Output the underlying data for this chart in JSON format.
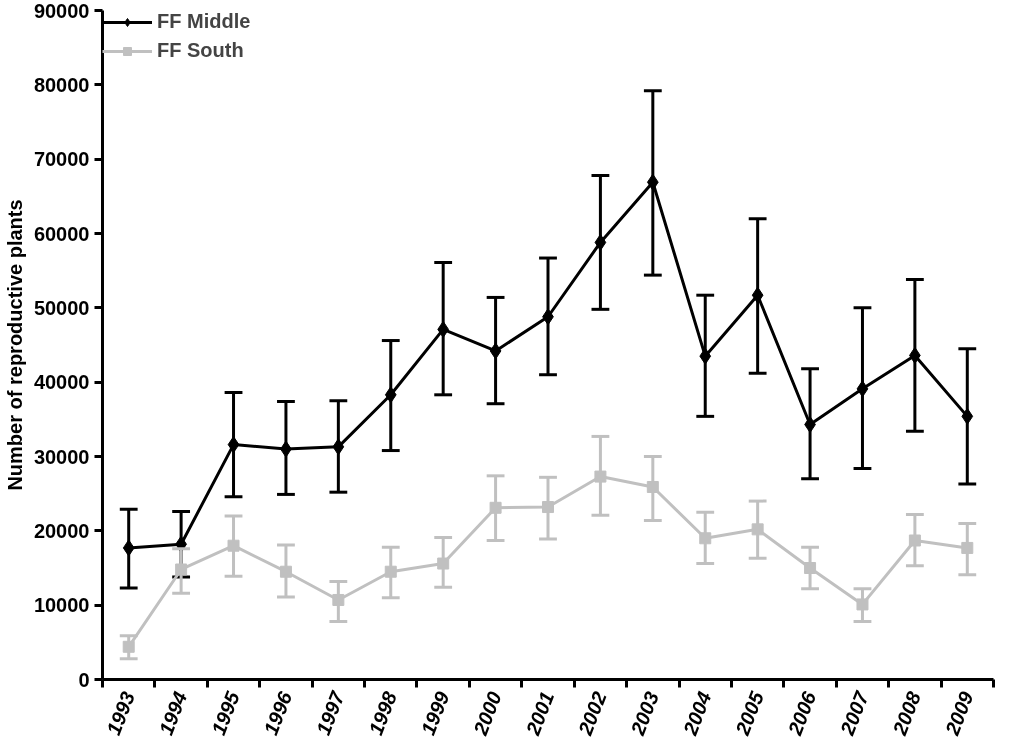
{
  "chart_data": {
    "type": "line",
    "ylabel": "Number of reproductive plants",
    "categories": [
      "1993",
      "1994",
      "1995",
      "1996",
      "1997",
      "1998",
      "1999",
      "2000",
      "2001",
      "2002",
      "2003",
      "2004",
      "2005",
      "2006",
      "2007",
      "2008",
      "2009"
    ],
    "series": [
      {
        "name": "FF Middle",
        "color": "#000000",
        "marker": "diamond",
        "values": [
          17700,
          18200,
          31600,
          31000,
          31300,
          38300,
          47100,
          44200,
          48800,
          58800,
          66900,
          43500,
          51700,
          34300,
          39100,
          43600,
          35400
        ],
        "errors": [
          [
            12300,
            22900
          ],
          [
            13800,
            22600
          ],
          [
            24600,
            38600
          ],
          [
            24900,
            37400
          ],
          [
            25200,
            37500
          ],
          [
            30800,
            45600
          ],
          [
            38300,
            56100
          ],
          [
            37100,
            51400
          ],
          [
            41000,
            56700
          ],
          [
            49800,
            67800
          ],
          [
            54400,
            79200
          ],
          [
            35400,
            51700
          ],
          [
            41200,
            62000
          ],
          [
            27000,
            41800
          ],
          [
            28400,
            50000
          ],
          [
            33400,
            53800
          ],
          [
            26300,
            44500
          ]
        ]
      },
      {
        "name": "FF South",
        "color": "#c0c0c0",
        "marker": "square",
        "values": [
          4400,
          14800,
          18000,
          14500,
          10700,
          14500,
          15600,
          23100,
          23200,
          27300,
          25900,
          19000,
          20200,
          15000,
          10100,
          18700,
          17700
        ],
        "errors": [
          [
            2800,
            5900
          ],
          [
            11600,
            17600
          ],
          [
            13900,
            22000
          ],
          [
            11100,
            18100
          ],
          [
            7800,
            13200
          ],
          [
            11000,
            17800
          ],
          [
            12400,
            19100
          ],
          [
            18700,
            27400
          ],
          [
            18900,
            27200
          ],
          [
            22100,
            32700
          ],
          [
            21400,
            30000
          ],
          [
            15600,
            22500
          ],
          [
            16300,
            24000
          ],
          [
            12200,
            17800
          ],
          [
            7800,
            12200
          ],
          [
            15300,
            22200
          ],
          [
            14100,
            21000
          ]
        ]
      }
    ],
    "ylim": [
      0,
      90000
    ],
    "yticks": [
      0,
      10000,
      20000,
      30000,
      40000,
      50000,
      60000,
      70000,
      80000,
      90000
    ],
    "grid": false,
    "legend": "top left",
    "line_style": "solid"
  }
}
